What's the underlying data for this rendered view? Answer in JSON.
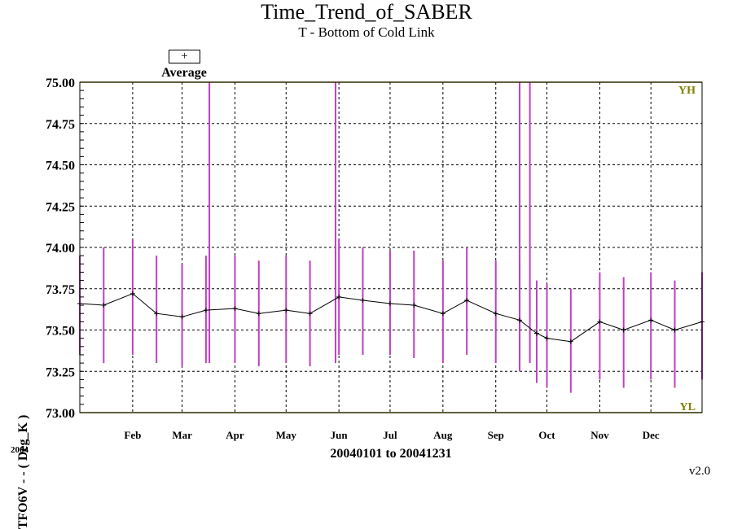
{
  "chart_data": {
    "type": "line",
    "title": "Time_Trend_of_SABER",
    "subtitle": "T - Bottom of Cold Link",
    "ylabel": "TFO6V  - - ( Deg_K )",
    "xlabel": "20040101 to 20041231",
    "year_label": "2004",
    "version": "v2.0",
    "legend": {
      "symbol": "+",
      "label": "Average"
    },
    "limit_labels": {
      "high": "YH",
      "low": "YL"
    },
    "ylim": [
      73.0,
      75.0
    ],
    "yticks": [
      "75.00",
      "74.75",
      "74.50",
      "74.25",
      "74.00",
      "73.75",
      "73.50",
      "73.25",
      "73.00"
    ],
    "ytick_values": [
      75.0,
      74.75,
      74.5,
      74.25,
      74.0,
      73.75,
      73.5,
      73.25,
      73.0
    ],
    "xlim": [
      "2004-01-01",
      "2004-12-31"
    ],
    "month_labels": [
      "Feb",
      "Mar",
      "Apr",
      "May",
      "Jun",
      "Jul",
      "Aug",
      "Sep",
      "Oct",
      "Nov",
      "Dec"
    ],
    "month_label_dates": [
      "2004-02-01",
      "2004-03-01",
      "2004-04-01",
      "2004-05-01",
      "2004-06-01",
      "2004-07-01",
      "2004-08-01",
      "2004-09-01",
      "2004-10-01",
      "2004-11-01",
      "2004-12-01"
    ],
    "grid": true,
    "colors": {
      "range": "#c040c0",
      "average": "#000000",
      "limits": "#808000"
    },
    "series": [
      {
        "name": "Average",
        "x": [
          "2004-01-01",
          "2004-01-15",
          "2004-02-01",
          "2004-02-15",
          "2004-03-01",
          "2004-03-15",
          "2004-04-01",
          "2004-04-15",
          "2004-05-01",
          "2004-05-15",
          "2004-06-01",
          "2004-06-15",
          "2004-07-01",
          "2004-07-15",
          "2004-08-01",
          "2004-08-15",
          "2004-09-01",
          "2004-09-15",
          "2004-09-25",
          "2004-10-01",
          "2004-10-15",
          "2004-11-01",
          "2004-11-15",
          "2004-12-01",
          "2004-12-15",
          "2004-12-31"
        ],
        "y": [
          73.66,
          73.65,
          73.72,
          73.6,
          73.58,
          73.62,
          73.63,
          73.6,
          73.62,
          73.6,
          73.7,
          73.68,
          73.66,
          73.65,
          73.6,
          73.68,
          73.6,
          73.56,
          73.48,
          73.45,
          73.43,
          73.55,
          73.5,
          73.56,
          73.5,
          73.55
        ],
        "range_low": [
          73.35,
          73.3,
          73.35,
          73.3,
          73.28,
          73.3,
          73.3,
          73.28,
          73.3,
          73.28,
          73.35,
          73.35,
          73.35,
          73.33,
          73.3,
          73.35,
          73.3,
          73.25,
          73.18,
          73.15,
          73.12,
          73.2,
          73.15,
          73.2,
          73.15,
          73.2
        ],
        "range_high": [
          73.95,
          74.0,
          74.05,
          73.95,
          73.9,
          73.95,
          73.95,
          73.92,
          73.95,
          73.92,
          74.05,
          74.0,
          73.98,
          73.98,
          73.92,
          74.0,
          73.92,
          73.9,
          73.8,
          73.78,
          73.75,
          73.85,
          73.82,
          73.85,
          73.8,
          73.85
        ]
      }
    ],
    "spikes": [
      "2004-03-17",
      "2004-05-30",
      "2004-09-15",
      "2004-09-21"
    ]
  }
}
